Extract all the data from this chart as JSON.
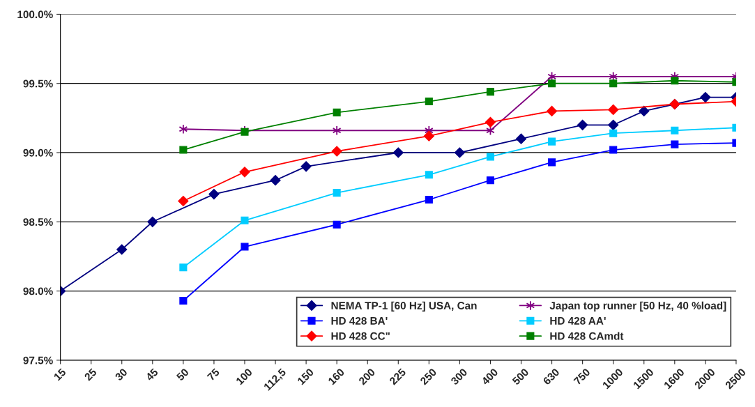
{
  "chart_data": {
    "type": "line",
    "categories": [
      "15",
      "25",
      "30",
      "45",
      "50",
      "75",
      "100",
      "112,5",
      "150",
      "160",
      "200",
      "225",
      "250",
      "300",
      "400",
      "500",
      "630",
      "750",
      "1000",
      "1500",
      "1600",
      "2000",
      "2500"
    ],
    "series": [
      {
        "name": "NEMA TP-1 [60 Hz] USA, Can",
        "color": "#000080",
        "marker": "diamond",
        "values": [
          98.0,
          null,
          98.3,
          98.5,
          null,
          98.7,
          null,
          98.8,
          98.9,
          null,
          null,
          99.0,
          null,
          99.0,
          null,
          99.1,
          null,
          99.2,
          99.2,
          99.3,
          99.35,
          99.4,
          99.4
        ]
      },
      {
        "name": "Japan top runner [50 Hz, 40 %load]",
        "color": "#800080",
        "marker": "cross",
        "values": [
          null,
          null,
          null,
          null,
          99.17,
          null,
          99.16,
          null,
          null,
          99.16,
          null,
          null,
          99.16,
          null,
          99.16,
          null,
          99.55,
          null,
          99.55,
          null,
          99.55,
          null,
          99.55
        ]
      },
      {
        "name": "HD 428 BA'",
        "color": "#0000ff",
        "marker": "square",
        "values": [
          null,
          null,
          null,
          null,
          97.93,
          null,
          98.32,
          null,
          null,
          98.48,
          null,
          null,
          98.66,
          null,
          98.8,
          null,
          98.93,
          null,
          99.02,
          null,
          99.06,
          null,
          99.07
        ]
      },
      {
        "name": "HD 428 AA'",
        "color": "#00ccff",
        "marker": "square",
        "values": [
          null,
          null,
          null,
          null,
          98.17,
          null,
          98.51,
          null,
          null,
          98.71,
          null,
          null,
          98.84,
          null,
          98.97,
          null,
          99.08,
          null,
          99.14,
          null,
          99.16,
          null,
          99.18
        ]
      },
      {
        "name": "HD 428 CC\"",
        "color": "#ff0000",
        "marker": "diamond",
        "values": [
          null,
          null,
          null,
          null,
          98.65,
          null,
          98.86,
          null,
          null,
          99.01,
          null,
          null,
          99.12,
          null,
          99.22,
          null,
          99.3,
          null,
          99.31,
          null,
          99.35,
          null,
          99.37
        ]
      },
      {
        "name": "HD 428 CAmdt",
        "color": "#008000",
        "marker": "square",
        "values": [
          null,
          null,
          null,
          null,
          99.02,
          null,
          99.15,
          null,
          null,
          99.29,
          null,
          null,
          99.37,
          null,
          99.44,
          null,
          99.5,
          null,
          99.5,
          null,
          99.52,
          null,
          99.51
        ]
      }
    ],
    "ylim": [
      97.5,
      100.0
    ],
    "yticks": [
      {
        "value": 97.5,
        "label": "97.5%"
      },
      {
        "value": 98.0,
        "label": "98.0%"
      },
      {
        "value": 98.5,
        "label": "98.5%"
      },
      {
        "value": 99.0,
        "label": "99.0%"
      },
      {
        "value": 99.5,
        "label": "99.5%"
      },
      {
        "value": 100.0,
        "label": "100.0%"
      }
    ],
    "grid": "y",
    "legend": "bottom right",
    "line_style": "solid"
  }
}
